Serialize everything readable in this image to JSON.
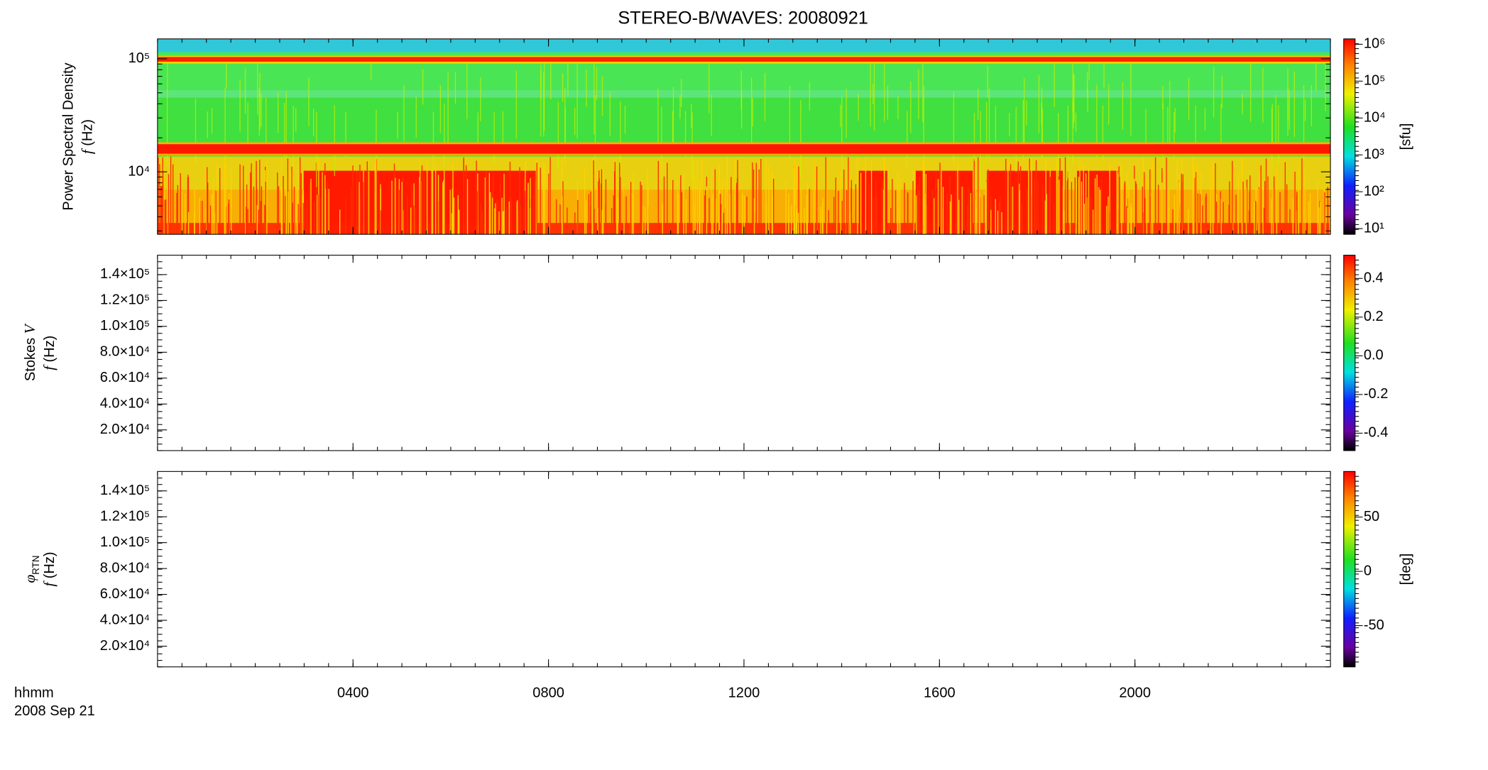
{
  "title": "STEREO-B/WAVES: 20080921",
  "x_axis": {
    "label": "hhmm",
    "date": "2008 Sep 21",
    "lim": [
      0,
      24
    ],
    "ticks": [
      {
        "value": 4,
        "label": "0400"
      },
      {
        "value": 8,
        "label": "0800"
      },
      {
        "value": 12,
        "label": "1200"
      },
      {
        "value": 16,
        "label": "1600"
      },
      {
        "value": 20,
        "label": "2000"
      }
    ]
  },
  "panels": [
    {
      "ylabel": "Power Spectral Density",
      "flabel": "f",
      "unit": "(Hz)",
      "scale": "log",
      "ylim": [
        2800,
        150000
      ],
      "yticks": [
        {
          "value": 10000,
          "label": "10⁴"
        },
        {
          "value": 100000,
          "label": "10⁵"
        }
      ],
      "colorbar": {
        "scale": "log",
        "lim": [
          7,
          1400000
        ],
        "label": "[sfu]",
        "ticks": [
          {
            "value": 10,
            "label": "10¹"
          },
          {
            "value": 100,
            "label": "10²"
          },
          {
            "value": 1000,
            "label": "10³"
          },
          {
            "value": 10000,
            "label": "10⁴"
          },
          {
            "value": 100000,
            "label": "10⁵"
          },
          {
            "value": 1000000,
            "label": "10⁶"
          }
        ]
      }
    },
    {
      "ylabel": "Stokes",
      "ylabel_symbol": "V",
      "flabel": "f",
      "unit": "(Hz)",
      "scale": "linear",
      "ylim": [
        4000,
        155000
      ],
      "yticks": [
        {
          "value": 20000,
          "label": "2.0×10⁴"
        },
        {
          "value": 40000,
          "label": "4.0×10⁴"
        },
        {
          "value": 60000,
          "label": "6.0×10⁴"
        },
        {
          "value": 80000,
          "label": "8.0×10⁴"
        },
        {
          "value": 100000,
          "label": "1.0×10⁵"
        },
        {
          "value": 120000,
          "label": "1.2×10⁵"
        },
        {
          "value": 140000,
          "label": "1.4×10⁵"
        }
      ],
      "colorbar": {
        "scale": "linear",
        "lim": [
          -0.49,
          0.52
        ],
        "ticks": [
          {
            "value": -0.4,
            "label": "-0.4"
          },
          {
            "value": -0.2,
            "label": "-0.2"
          },
          {
            "value": 0,
            "label": "0.0"
          },
          {
            "value": 0.2,
            "label": "0.2"
          },
          {
            "value": 0.4,
            "label": "0.4"
          }
        ]
      }
    },
    {
      "ylabel_symbol": "φ",
      "ylabel_subscript": "RTN",
      "flabel": "f",
      "unit": "(Hz)",
      "scale": "linear",
      "ylim": [
        4000,
        155000
      ],
      "yticks": [
        {
          "value": 20000,
          "label": "2.0×10⁴"
        },
        {
          "value": 40000,
          "label": "4.0×10⁴"
        },
        {
          "value": 60000,
          "label": "6.0×10⁴"
        },
        {
          "value": 80000,
          "label": "8.0×10⁴"
        },
        {
          "value": 100000,
          "label": "1.0×10⁵"
        },
        {
          "value": 120000,
          "label": "1.2×10⁵"
        },
        {
          "value": 140000,
          "label": "1.4×10⁵"
        }
      ],
      "colorbar": {
        "scale": "linear",
        "lim": [
          -88,
          92
        ],
        "label": "[deg]",
        "ticks": [
          -50,
          0,
          50
        ]
      }
    }
  ]
}
